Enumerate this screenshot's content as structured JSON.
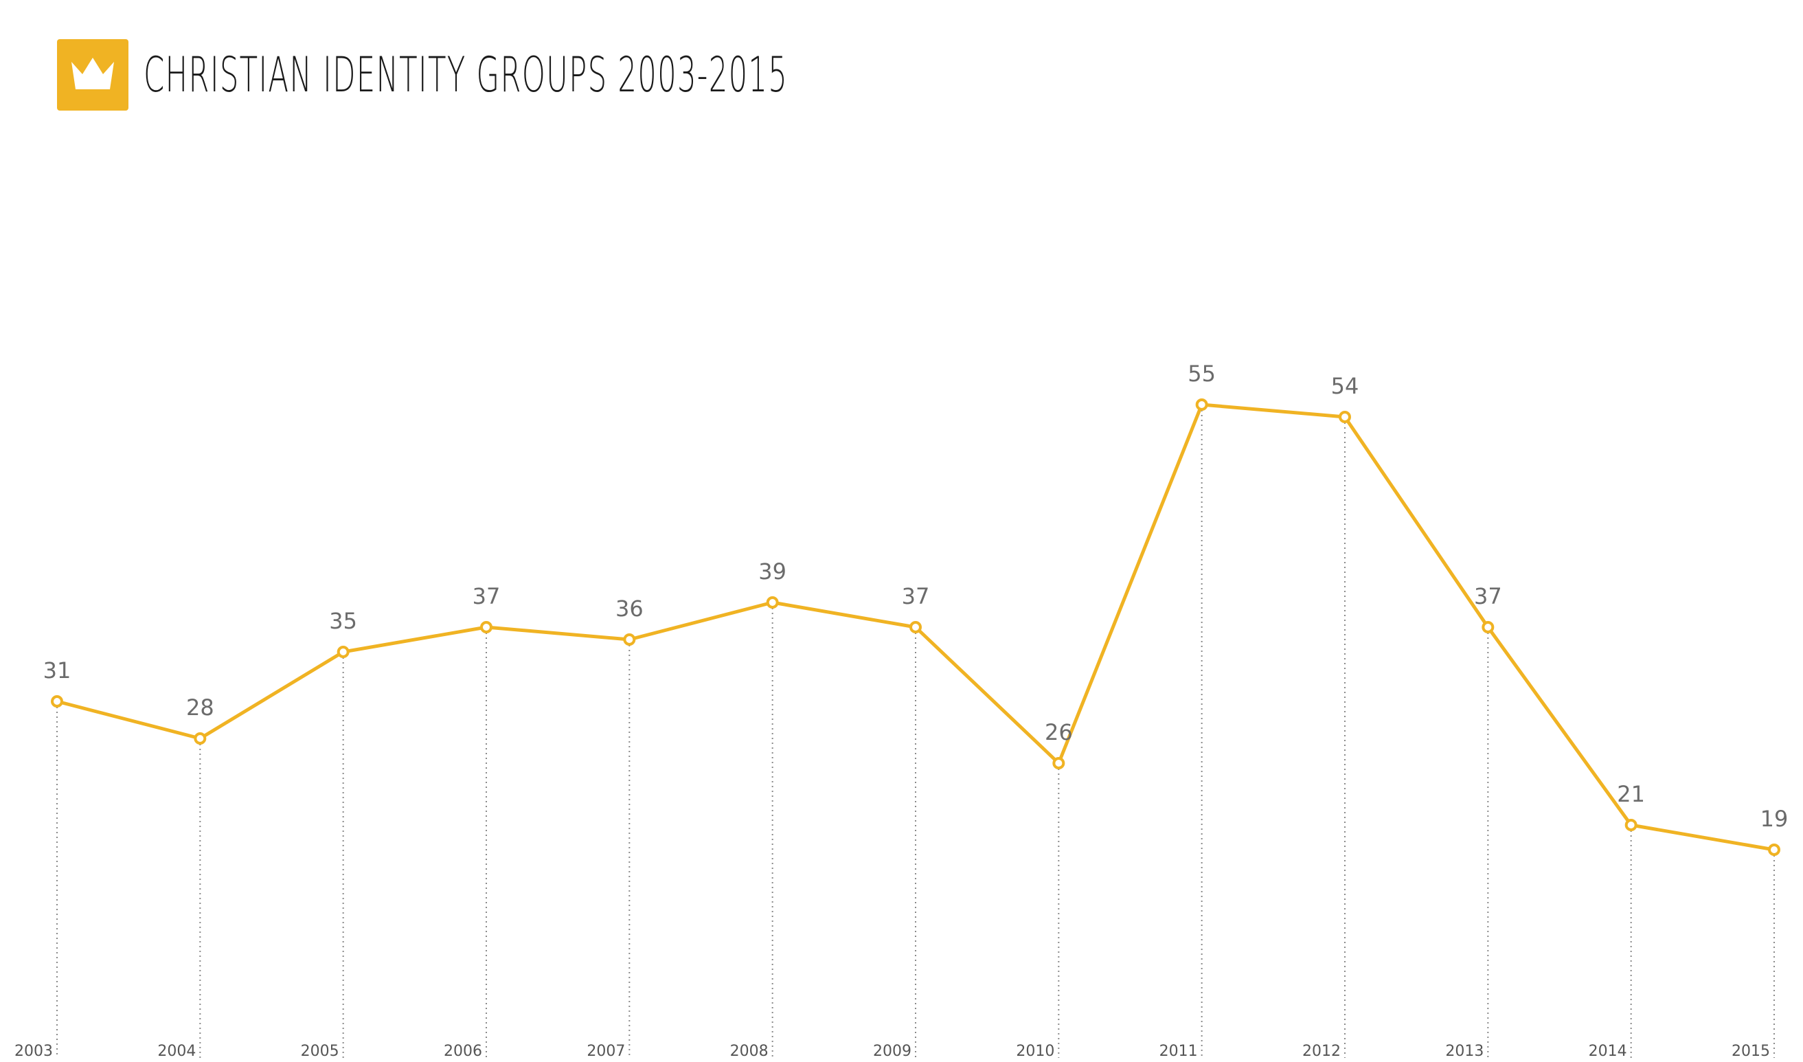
{
  "header": {
    "title": "CHRISTIAN IDENTITY GROUPS 2003-2015",
    "icon": "crown-icon"
  },
  "colors": {
    "accent": "#F0B323",
    "text": "#1a1a1a",
    "label": "#6b6b6b"
  },
  "chart_data": {
    "type": "line",
    "title": "CHRISTIAN IDENTITY GROUPS 2003-2015",
    "xlabel": "",
    "ylabel": "",
    "categories": [
      "2003",
      "2004",
      "2005",
      "2006",
      "2007",
      "2008",
      "2009",
      "2010",
      "2011",
      "2012",
      "2013",
      "2014",
      "2015"
    ],
    "values": [
      31,
      28,
      35,
      37,
      36,
      39,
      37,
      26,
      55,
      54,
      37,
      21,
      19
    ],
    "data_labels": true,
    "grid": false,
    "legend": "none"
  }
}
